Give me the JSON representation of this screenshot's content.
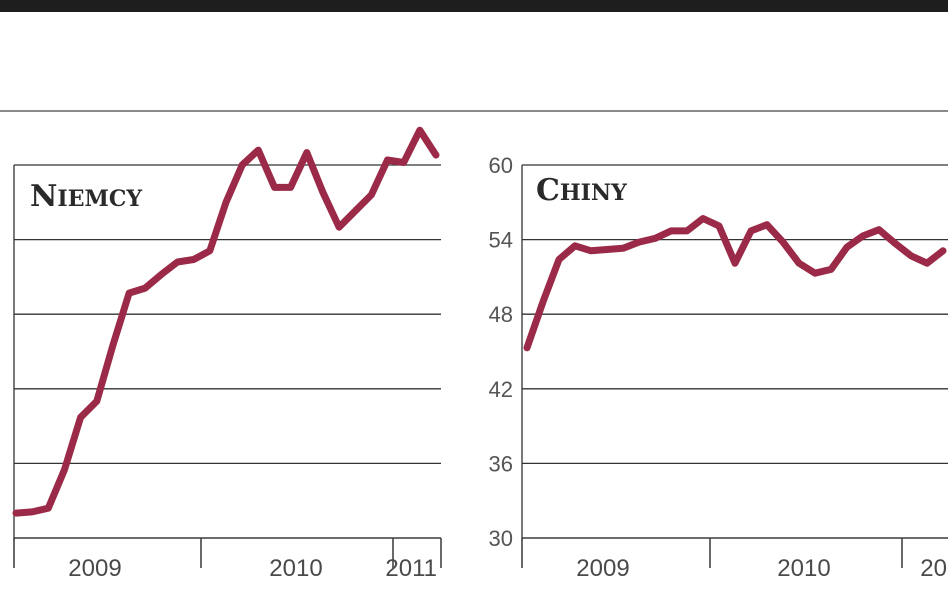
{
  "colors": {
    "line": "#9b2a48",
    "grid": "#333333",
    "top_bar": "#1e1e1e"
  },
  "chart_data": [
    {
      "type": "line",
      "title": "NIEMCY",
      "xlabel": "",
      "ylabel": "",
      "ylim": [
        30,
        60
      ],
      "y_ticks": [
        "",
        "",
        "",
        "",
        "",
        ""
      ],
      "x_tick_labels": [
        "2009",
        "2010",
        "2011"
      ],
      "grid": true,
      "series": [
        {
          "values": [
            32.0,
            32.1,
            32.4,
            35.5,
            39.7,
            41.0,
            45.5,
            49.7,
            50.1,
            51.2,
            52.2,
            52.4,
            53.1,
            57.0,
            60.0,
            61.2,
            58.2,
            58.2,
            61.0,
            57.8,
            55.0,
            56.3,
            57.6,
            60.4,
            60.2,
            62.8,
            60.8
          ]
        }
      ]
    },
    {
      "type": "line",
      "title": "CHINY",
      "xlabel": "",
      "ylabel": "",
      "ylim": [
        30,
        60
      ],
      "y_ticks": [
        "30",
        "36",
        "42",
        "48",
        "54",
        "60"
      ],
      "x_tick_labels": [
        "2009",
        "2010",
        "20"
      ],
      "grid": true,
      "series": [
        {
          "values": [
            45.3,
            49.0,
            52.4,
            53.5,
            53.1,
            53.2,
            53.3,
            53.8,
            54.1,
            54.7,
            54.7,
            55.7,
            55.1,
            52.1,
            54.7,
            55.2,
            53.8,
            52.1,
            51.3,
            51.6,
            53.4,
            54.3,
            54.8,
            53.7,
            52.7,
            52.1,
            53.1
          ]
        }
      ]
    }
  ]
}
